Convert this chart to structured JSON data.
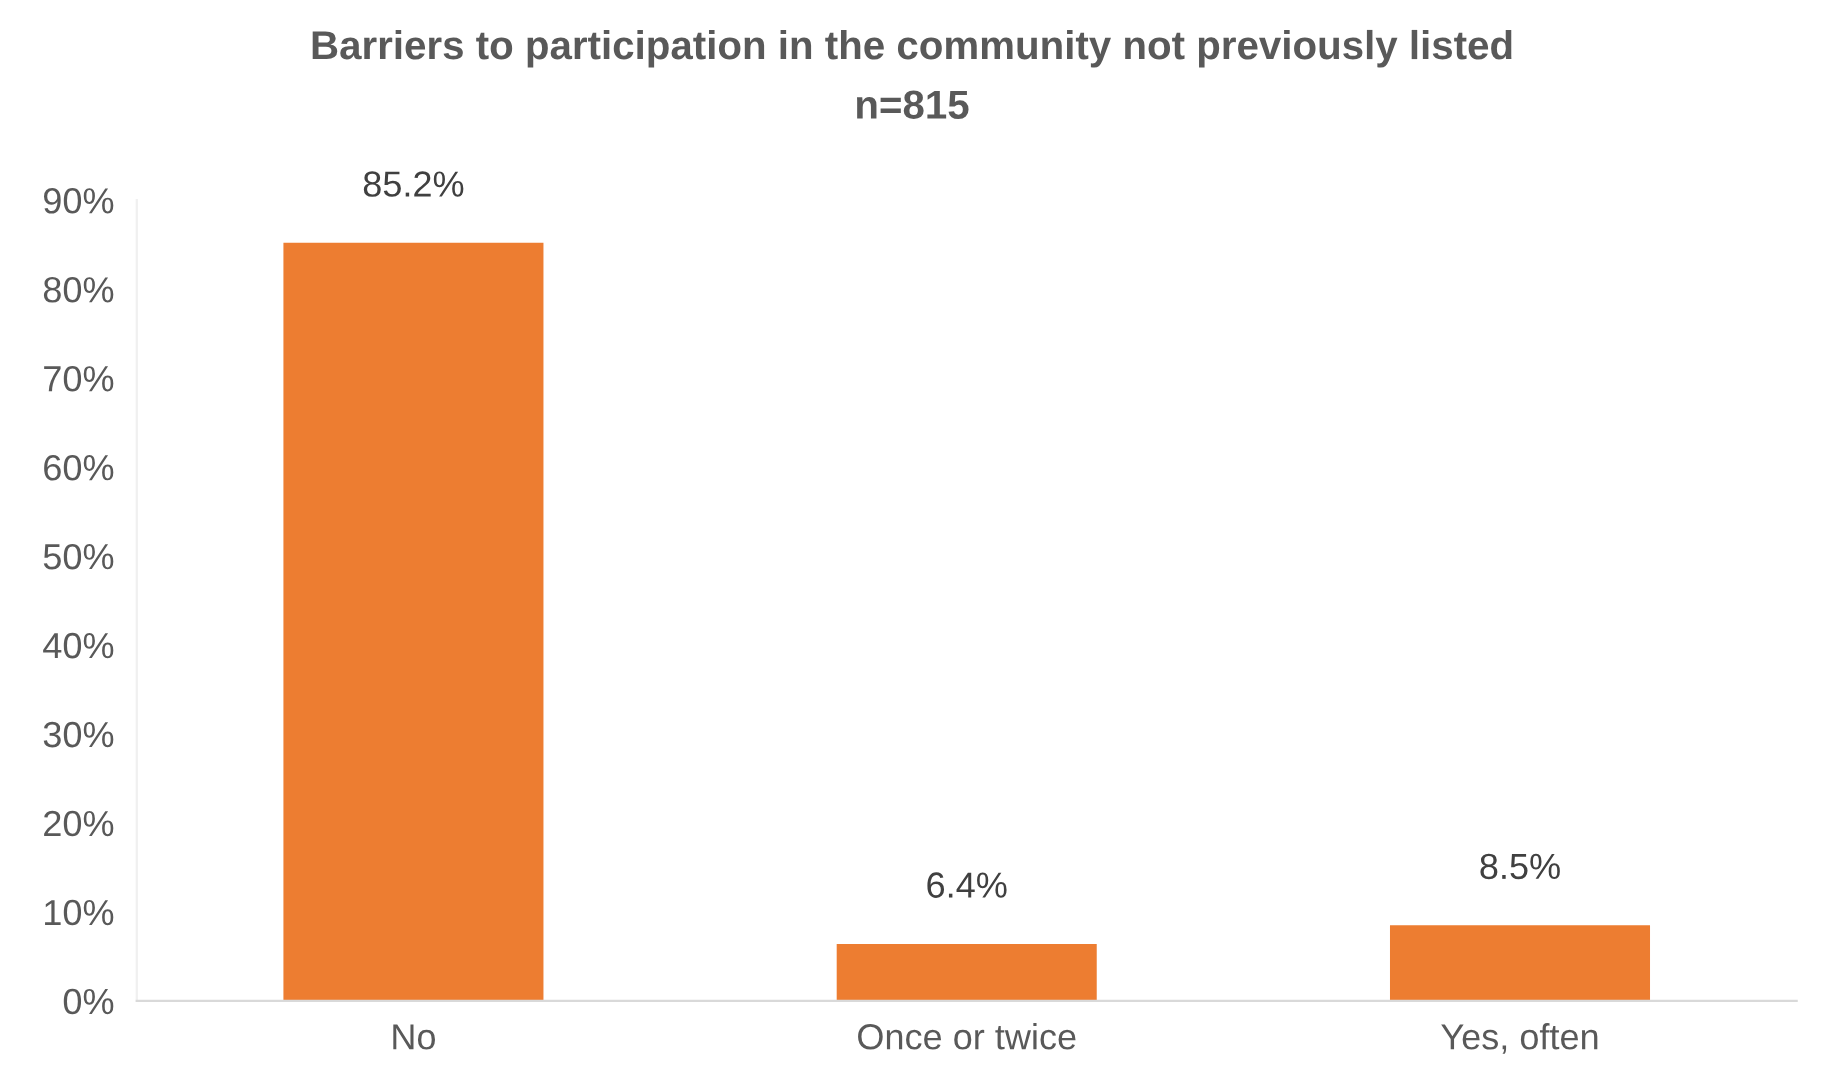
{
  "chart_data": {
    "type": "bar",
    "title": "Barriers to participation in the community not previously listed",
    "subtitle": "n=815",
    "categories": [
      "No",
      "Once or twice",
      "Yes, often"
    ],
    "values": [
      85.2,
      6.4,
      8.5
    ],
    "color": "#ed7d31",
    "value_labels": [
      "85.2%",
      "6.4%",
      "8.5%"
    ],
    "ylim": [
      0,
      90
    ],
    "yticks": [
      {
        "value": 0,
        "label": "0%"
      },
      {
        "value": 10,
        "label": "10%"
      },
      {
        "value": 20,
        "label": "20%"
      },
      {
        "value": 30,
        "label": "30%"
      },
      {
        "value": 40,
        "label": "40%"
      },
      {
        "value": 50,
        "label": "50%"
      },
      {
        "value": 60,
        "label": "60%"
      },
      {
        "value": 70,
        "label": "70%"
      },
      {
        "value": 80,
        "label": "80%"
      },
      {
        "value": 90,
        "label": "90%"
      }
    ],
    "grid": false,
    "legend": false
  }
}
